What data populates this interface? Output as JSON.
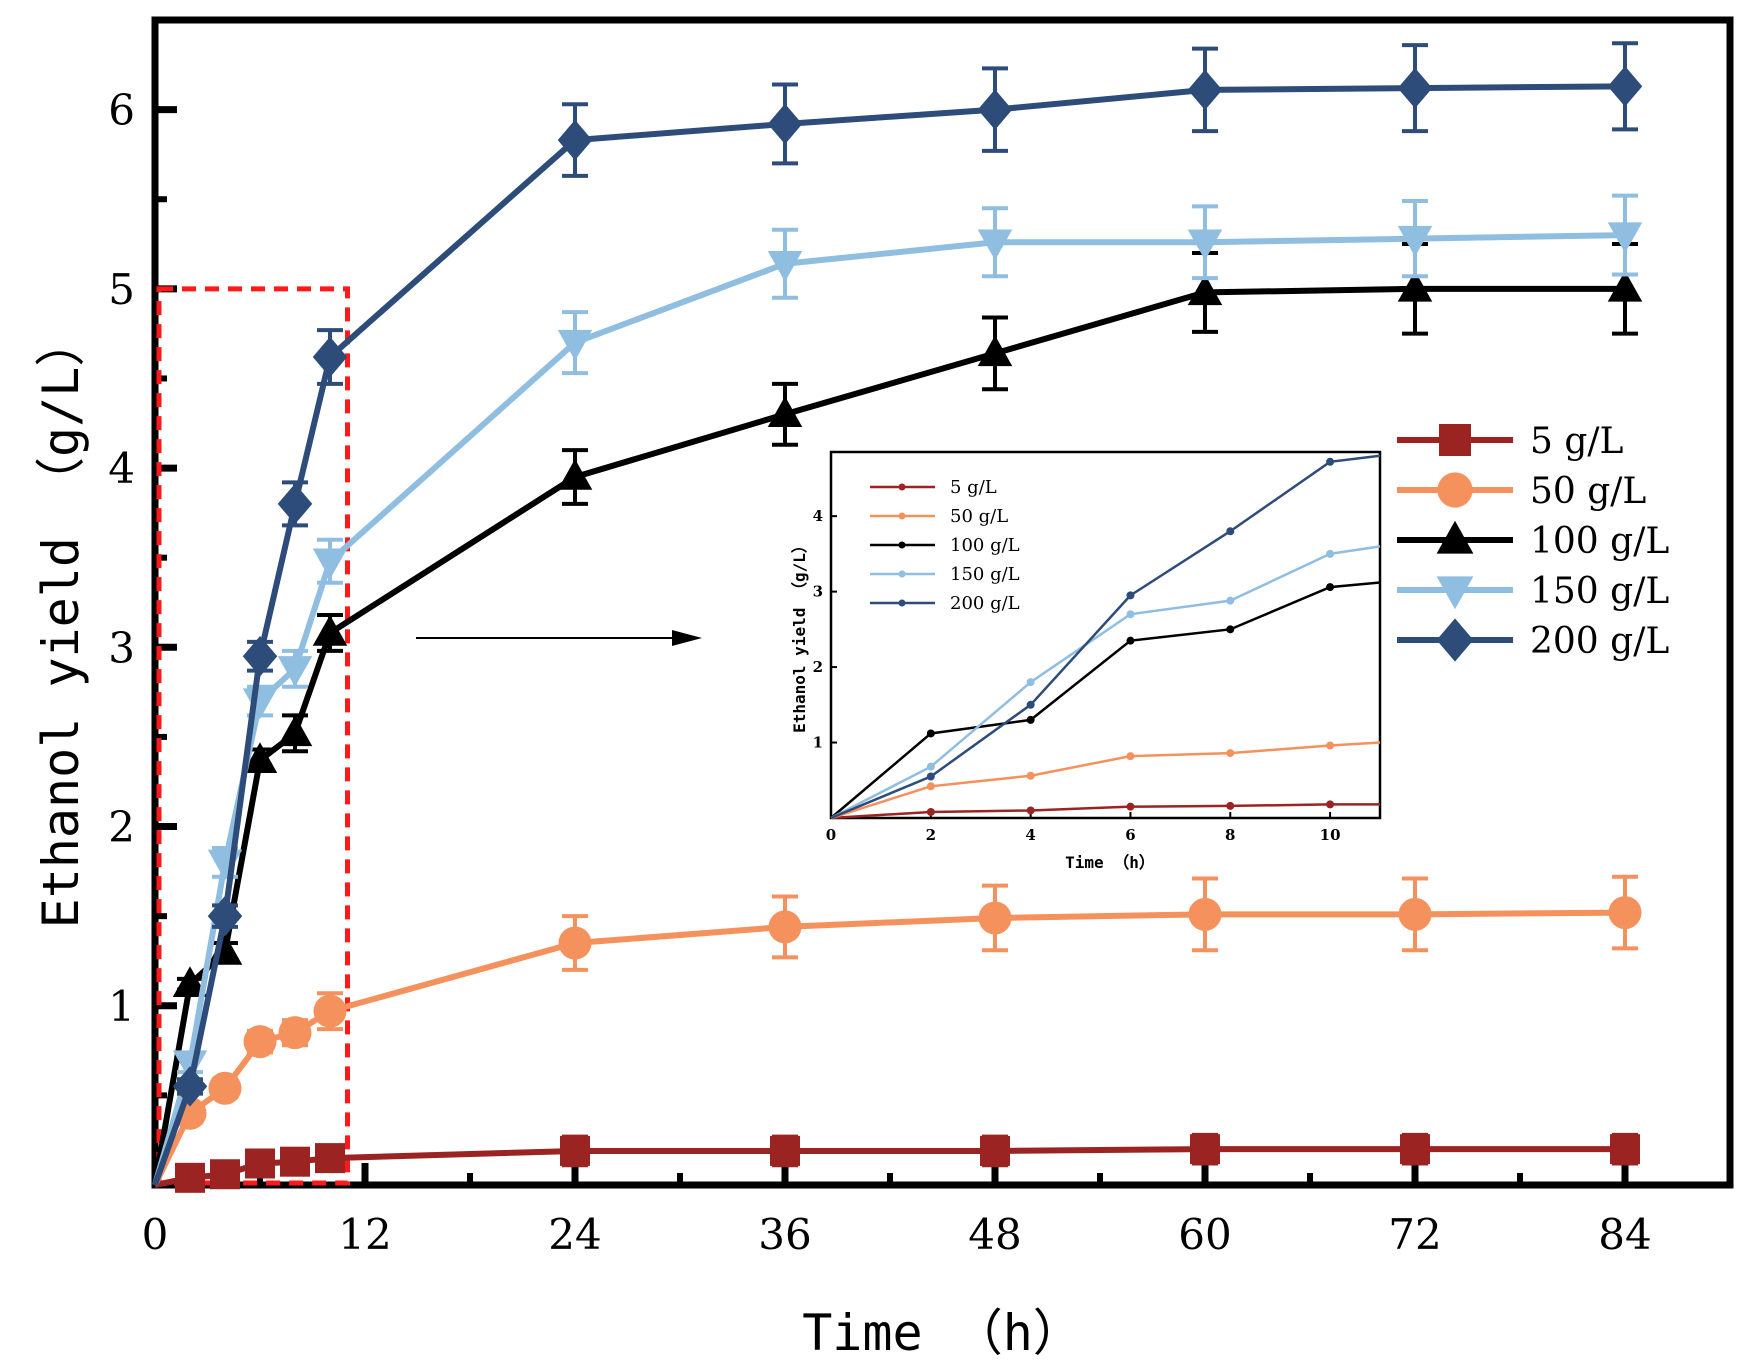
{
  "chart_data": [
    {
      "name": "main",
      "type": "line",
      "xlabel": "Time （h）",
      "ylabel": "Ethanol yield （g/L）",
      "xlim": [
        0,
        90
      ],
      "ylim": [
        0,
        6.5
      ],
      "x_ticks": [
        0,
        12,
        24,
        36,
        48,
        60,
        72,
        84
      ],
      "y_ticks": [
        1,
        2,
        3,
        4,
        5,
        6
      ],
      "x": [
        0,
        2,
        4,
        6,
        8,
        10,
        24,
        36,
        48,
        60,
        72,
        84
      ],
      "highlight_box": {
        "x": [
          0,
          11
        ],
        "y": [
          0,
          5
        ]
      },
      "series": [
        {
          "name": "5 g/L",
          "color": "#9B2423",
          "marker": "square",
          "values": [
            0,
            0.04,
            0.06,
            0.12,
            0.13,
            0.15,
            0.19,
            0.19,
            0.19,
            0.2,
            0.2,
            0.2
          ],
          "errors": [
            0,
            0.02,
            0.02,
            0.03,
            0.04,
            0.05,
            0.08,
            0.08,
            0.08,
            0.08,
            0.08,
            0.08
          ]
        },
        {
          "name": "50 g/L",
          "color": "#F4915C",
          "marker": "circle",
          "values": [
            0,
            0.4,
            0.54,
            0.8,
            0.85,
            0.97,
            1.35,
            1.44,
            1.49,
            1.51,
            1.51,
            1.52
          ],
          "errors": [
            0,
            0.05,
            0.05,
            0.06,
            0.07,
            0.1,
            0.15,
            0.17,
            0.18,
            0.2,
            0.2,
            0.2
          ]
        },
        {
          "name": "100 g/L",
          "color": "#000000",
          "marker": "triangle-up",
          "values": [
            0,
            1.12,
            1.3,
            2.37,
            2.52,
            3.08,
            3.95,
            4.3,
            4.64,
            4.98,
            5.0,
            5.0
          ],
          "errors": [
            0,
            0.03,
            0.05,
            0.06,
            0.1,
            0.1,
            0.15,
            0.17,
            0.2,
            0.22,
            0.25,
            0.25
          ]
        },
        {
          "name": "150 g/L",
          "color": "#90BEE0",
          "marker": "triangle-down",
          "values": [
            0,
            0.68,
            1.8,
            2.7,
            2.88,
            3.48,
            4.7,
            5.14,
            5.26,
            5.26,
            5.28,
            5.3
          ],
          "errors": [
            0,
            0.05,
            0.08,
            0.08,
            0.1,
            0.12,
            0.17,
            0.19,
            0.19,
            0.2,
            0.21,
            0.22
          ]
        },
        {
          "name": "200 g/L",
          "color": "#2D4C7A",
          "marker": "diamond",
          "values": [
            0,
            0.55,
            1.5,
            2.95,
            3.8,
            4.62,
            5.83,
            5.92,
            6.0,
            6.11,
            6.12,
            6.13
          ],
          "errors": [
            0,
            0.04,
            0.06,
            0.08,
            0.12,
            0.15,
            0.2,
            0.22,
            0.23,
            0.23,
            0.24,
            0.24
          ]
        }
      ]
    },
    {
      "name": "inset",
      "type": "line",
      "xlabel": "Time （h）",
      "ylabel": "Ethanol yield （g/L）",
      "xlim": [
        0,
        11
      ],
      "ylim": [
        0,
        4.85
      ],
      "x_ticks": [
        0,
        2,
        4,
        6,
        8,
        10
      ],
      "y_ticks": [
        1,
        2,
        3,
        4
      ],
      "x": [
        0,
        2,
        4,
        6,
        8,
        10,
        11
      ],
      "series": [
        {
          "name": "5 g/L",
          "color": "#9B2423",
          "values": [
            0,
            0.08,
            0.1,
            0.15,
            0.16,
            0.18,
            0.18
          ]
        },
        {
          "name": "50 g/L",
          "color": "#F4915C",
          "values": [
            0,
            0.42,
            0.56,
            0.82,
            0.86,
            0.96,
            1.0
          ]
        },
        {
          "name": "100 g/L",
          "color": "#000000",
          "values": [
            0,
            1.12,
            1.3,
            2.35,
            2.5,
            3.06,
            3.12
          ]
        },
        {
          "name": "150 g/L",
          "color": "#90BEE0",
          "values": [
            0,
            0.68,
            1.8,
            2.7,
            2.88,
            3.5,
            3.6
          ]
        },
        {
          "name": "200 g/L",
          "color": "#2D4C7A",
          "values": [
            0,
            0.55,
            1.5,
            2.95,
            3.8,
            4.72,
            4.8
          ]
        }
      ]
    }
  ]
}
